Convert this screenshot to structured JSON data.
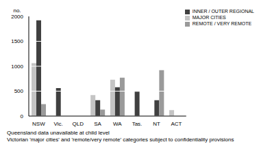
{
  "chart_data": {
    "type": "bar",
    "y_label": "no.",
    "categories": [
      "NSW",
      "Vic.",
      "QLD",
      "SA",
      "WA",
      "Tas.",
      "NT",
      "ACT"
    ],
    "series": [
      {
        "name": "MAJOR CITIES",
        "color": "#c4c4c4",
        "values": [
          1060,
          null,
          null,
          420,
          730,
          null,
          null,
          120
        ]
      },
      {
        "name": "INNER / OUTER REGIONAL",
        "color": "#404040",
        "values": [
          1920,
          560,
          null,
          320,
          580,
          490,
          320,
          null
        ]
      },
      {
        "name": "REMOTE / VERY REMOTE",
        "color": "#9a9a9a",
        "values": [
          240,
          null,
          null,
          130,
          770,
          null,
          920,
          null
        ]
      }
    ],
    "ylim": [
      0,
      2000
    ],
    "yticks": [
      0,
      500,
      1000,
      1500,
      2000
    ],
    "grid": true,
    "legend": "top-right",
    "annotations": [
      "Queensland data unavailable at child level",
      "Victorian 'major cities' and 'remote/very remote' categories subject to confidentiality provisions"
    ]
  }
}
